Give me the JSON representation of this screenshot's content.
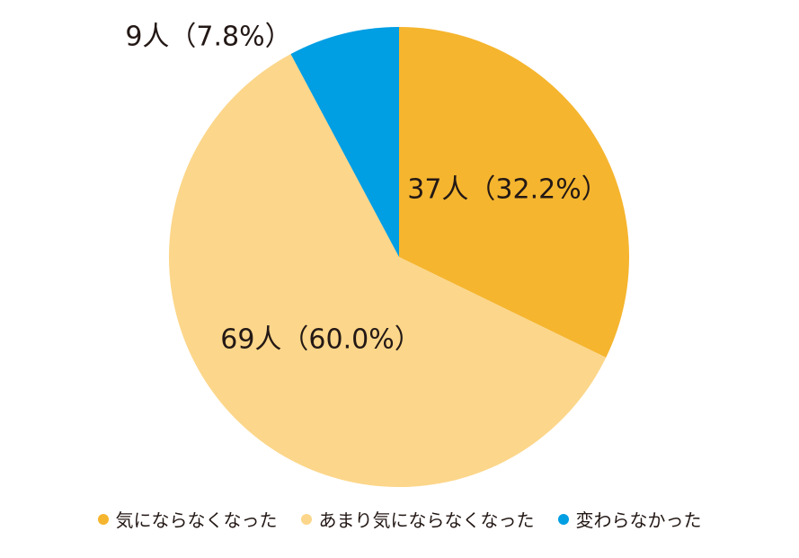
{
  "chart_data": {
    "type": "pie",
    "title": "",
    "start": "12 o'clock, clockwise",
    "legend_position": "bottom",
    "categories": [
      "気にならなくなった",
      "あまり気にならなくなった",
      "変わらなかった"
    ],
    "counts": [
      37,
      69,
      9
    ],
    "values": [
      32.2,
      60.0,
      7.8
    ],
    "labels": [
      "37人（32.2%）",
      "69人（60.0%）",
      "9人（7.8%）"
    ],
    "colors": [
      "#f5b52e",
      "#fcd68a",
      "#009ee3"
    ]
  }
}
